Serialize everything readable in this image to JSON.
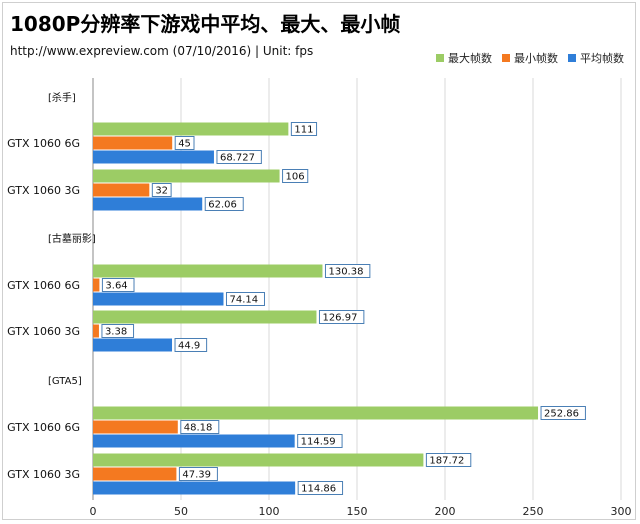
{
  "header": {
    "title": "1080P分辨率下游戏中平均、最大、最小帧",
    "subtitle": "http://www.expreview.com (07/10/2016) | Unit: fps"
  },
  "chart_data": {
    "type": "bar",
    "orientation": "horizontal",
    "xlim": [
      0,
      300
    ],
    "xticks": [
      "0",
      "50",
      "100",
      "150",
      "200",
      "250",
      "300"
    ],
    "grid": true,
    "legend_position": "top-right",
    "series": [
      {
        "name": "最大帧数",
        "color": "#9ccc65"
      },
      {
        "name": "最小帧数",
        "color": "#f47920"
      },
      {
        "name": "平均帧数",
        "color": "#2f7ed8"
      }
    ],
    "groups": [
      {
        "label": "[杀手]",
        "rows": [
          {
            "label": "GTX 1060 6G",
            "values": [
              111,
              45,
              68.727
            ],
            "labels": [
              "111",
              "45",
              "68.727"
            ]
          },
          {
            "label": "GTX 1060 3G",
            "values": [
              106,
              32,
              62.06
            ],
            "labels": [
              "106",
              "32",
              "62.06"
            ]
          }
        ]
      },
      {
        "label": "[古墓丽影]",
        "rows": [
          {
            "label": "GTX 1060 6G",
            "values": [
              130.38,
              3.64,
              74.14
            ],
            "labels": [
              "130.38",
              "3.64",
              "74.14"
            ]
          },
          {
            "label": "GTX 1060 3G",
            "values": [
              126.97,
              3.38,
              44.9
            ],
            "labels": [
              "126.97",
              "3.38",
              "44.9"
            ]
          }
        ]
      },
      {
        "label": "[GTA5]",
        "rows": [
          {
            "label": "GTX 1060 6G",
            "values": [
              252.86,
              48.18,
              114.59
            ],
            "labels": [
              "252.86",
              "48.18",
              "114.59"
            ]
          },
          {
            "label": "GTX 1060 3G",
            "values": [
              187.72,
              47.39,
              114.86
            ],
            "labels": [
              "187.72",
              "47.39",
              "114.86"
            ]
          }
        ]
      }
    ]
  }
}
